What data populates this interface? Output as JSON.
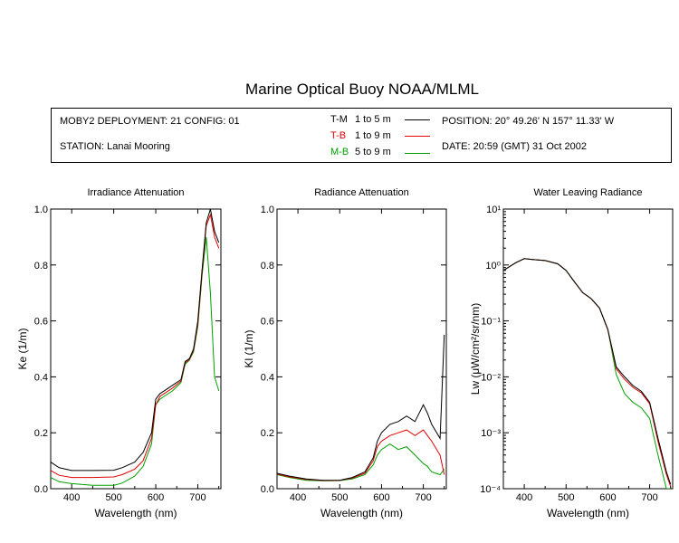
{
  "header": {
    "title": "Marine Optical Buoy NOAA/MLML",
    "deployment": "MOBY2 DEPLOYMENT: 21 CONFIG: 01",
    "station": "STATION: Lanai Mooring",
    "position": "POSITION: 20° 49.26' N   157° 11.33' W",
    "date": "DATE: 20:59 (GMT) 31 Oct 2002"
  },
  "legend": [
    {
      "code": "T-M",
      "range": "1 to 5  m",
      "color": "#000000"
    },
    {
      "code": "T-B",
      "range": "1 to 9  m",
      "color": "#e00000"
    },
    {
      "code": "M-B",
      "range": "5 to 9  m",
      "color": "#00a000"
    }
  ],
  "colors": {
    "tm": "#000000",
    "tb": "#e00000",
    "mb": "#00a000"
  },
  "chart_data": [
    {
      "type": "line",
      "title": "Irradiance Attenuation",
      "xlabel": "Wavelength (nm)",
      "ylabel": "Ke  (1/m)",
      "xlim": [
        350,
        755
      ],
      "ylim": [
        0,
        1
      ],
      "xticks": [
        400,
        500,
        600,
        700
      ],
      "yticks": [
        0.0,
        0.2,
        0.4,
        0.6,
        0.8,
        1.0
      ],
      "ytick_labels": [
        "0.0",
        "0.2",
        "0.4",
        "0.6",
        "0.8",
        "1.0"
      ],
      "series": [
        {
          "name": "T-M",
          "x": [
            350,
            370,
            400,
            450,
            500,
            520,
            550,
            570,
            590,
            600,
            610,
            620,
            640,
            660,
            670,
            680,
            690,
            700,
            710,
            720,
            730,
            740,
            750
          ],
          "y": [
            0.095,
            0.075,
            0.065,
            0.065,
            0.066,
            0.075,
            0.095,
            0.13,
            0.2,
            0.32,
            0.34,
            0.35,
            0.37,
            0.39,
            0.455,
            0.465,
            0.5,
            0.6,
            0.78,
            0.95,
            1.0,
            0.92,
            0.88
          ]
        },
        {
          "name": "T-B",
          "x": [
            350,
            370,
            400,
            450,
            500,
            520,
            550,
            570,
            590,
            600,
            610,
            620,
            640,
            660,
            670,
            680,
            690,
            700,
            710,
            720,
            730,
            740,
            750
          ],
          "y": [
            0.065,
            0.048,
            0.04,
            0.04,
            0.042,
            0.05,
            0.07,
            0.1,
            0.18,
            0.3,
            0.33,
            0.34,
            0.36,
            0.385,
            0.45,
            0.462,
            0.495,
            0.59,
            0.77,
            0.94,
            0.98,
            0.9,
            0.86
          ]
        },
        {
          "name": "M-B",
          "x": [
            350,
            370,
            400,
            450,
            500,
            520,
            550,
            570,
            590,
            600,
            610,
            620,
            640,
            660,
            670,
            680,
            690,
            700,
            710,
            720,
            730,
            740,
            750
          ],
          "y": [
            0.04,
            0.025,
            0.018,
            0.012,
            0.012,
            0.02,
            0.045,
            0.08,
            0.16,
            0.3,
            0.32,
            0.33,
            0.35,
            0.38,
            0.445,
            0.46,
            0.49,
            0.58,
            0.76,
            0.9,
            0.7,
            0.4,
            0.35
          ]
        }
      ]
    },
    {
      "type": "line",
      "title": "Radiance Attenuation",
      "xlabel": "Wavelength (nm)",
      "ylabel": "Kl  (1/m)",
      "xlim": [
        350,
        755
      ],
      "ylim": [
        0,
        1
      ],
      "xticks": [
        400,
        500,
        600,
        700
      ],
      "yticks": [
        0.0,
        0.2,
        0.4,
        0.6,
        0.8,
        1.0
      ],
      "ytick_labels": [
        "0.0",
        "0.2",
        "0.4",
        "0.6",
        "0.8",
        "1.0"
      ],
      "series": [
        {
          "name": "T-M",
          "x": [
            350,
            380,
            420,
            460,
            500,
            530,
            560,
            580,
            590,
            600,
            620,
            640,
            660,
            680,
            700,
            710,
            720,
            740,
            750
          ],
          "y": [
            0.055,
            0.045,
            0.035,
            0.03,
            0.03,
            0.04,
            0.06,
            0.11,
            0.17,
            0.2,
            0.23,
            0.24,
            0.26,
            0.24,
            0.3,
            0.27,
            0.23,
            0.18,
            0.55
          ]
        },
        {
          "name": "T-B",
          "x": [
            350,
            380,
            420,
            460,
            500,
            530,
            560,
            580,
            590,
            600,
            620,
            640,
            660,
            680,
            700,
            710,
            720,
            740,
            750
          ],
          "y": [
            0.052,
            0.042,
            0.033,
            0.029,
            0.03,
            0.038,
            0.055,
            0.1,
            0.15,
            0.17,
            0.19,
            0.2,
            0.21,
            0.19,
            0.21,
            0.19,
            0.17,
            0.12,
            0.05
          ]
        },
        {
          "name": "M-B",
          "x": [
            350,
            380,
            420,
            460,
            500,
            530,
            560,
            580,
            590,
            600,
            620,
            640,
            660,
            680,
            700,
            710,
            720,
            740,
            750
          ],
          "y": [
            0.05,
            0.04,
            0.03,
            0.028,
            0.029,
            0.035,
            0.05,
            0.085,
            0.12,
            0.14,
            0.16,
            0.14,
            0.15,
            0.12,
            0.09,
            0.08,
            0.06,
            0.05,
            0.07
          ]
        }
      ]
    },
    {
      "type": "line",
      "title": "Water Leaving Radiance",
      "xlabel": "Wavelength (nm)",
      "ylabel": "Lw  (μW/cm²/sr/nm)",
      "xlim": [
        350,
        755
      ],
      "yscale": "log",
      "ylim": [
        0.0001,
        10
      ],
      "xticks": [
        400,
        500,
        600,
        700
      ],
      "yticks": [
        0.0001,
        0.001,
        0.01,
        0.1,
        1,
        10
      ],
      "ytick_labels": [
        "10⁻⁴",
        "10⁻³",
        "10⁻²",
        "10⁻¹",
        "10⁰",
        "10¹"
      ],
      "series": [
        {
          "name": "T-M",
          "x": [
            350,
            380,
            400,
            420,
            450,
            480,
            500,
            520,
            540,
            560,
            580,
            600,
            620,
            640,
            660,
            680,
            700,
            720,
            740,
            750
          ],
          "y": [
            0.8,
            1.1,
            1.3,
            1.25,
            1.2,
            1.05,
            0.8,
            0.5,
            0.32,
            0.25,
            0.17,
            0.07,
            0.015,
            0.01,
            0.007,
            0.0055,
            0.0035,
            0.0008,
            0.0002,
            0.00012
          ]
        },
        {
          "name": "T-B",
          "x": [
            350,
            380,
            400,
            420,
            450,
            480,
            500,
            520,
            540,
            560,
            580,
            600,
            620,
            640,
            660,
            680,
            700,
            720,
            740,
            750
          ],
          "y": [
            0.8,
            1.1,
            1.3,
            1.25,
            1.2,
            1.05,
            0.8,
            0.5,
            0.32,
            0.25,
            0.17,
            0.07,
            0.014,
            0.009,
            0.0065,
            0.0052,
            0.0033,
            0.0007,
            0.00018,
            0.00011
          ]
        },
        {
          "name": "M-B",
          "x": [
            350,
            380,
            400,
            420,
            450,
            480,
            500,
            520,
            540,
            560,
            580,
            600,
            620,
            640,
            660,
            680,
            700,
            720,
            740,
            750
          ],
          "y": [
            0.8,
            1.1,
            1.3,
            1.25,
            1.2,
            1.05,
            0.8,
            0.5,
            0.32,
            0.25,
            0.17,
            0.07,
            0.011,
            0.005,
            0.0035,
            0.0028,
            0.0018,
            0.0004,
            0.0001,
            0.0001
          ]
        }
      ]
    }
  ]
}
